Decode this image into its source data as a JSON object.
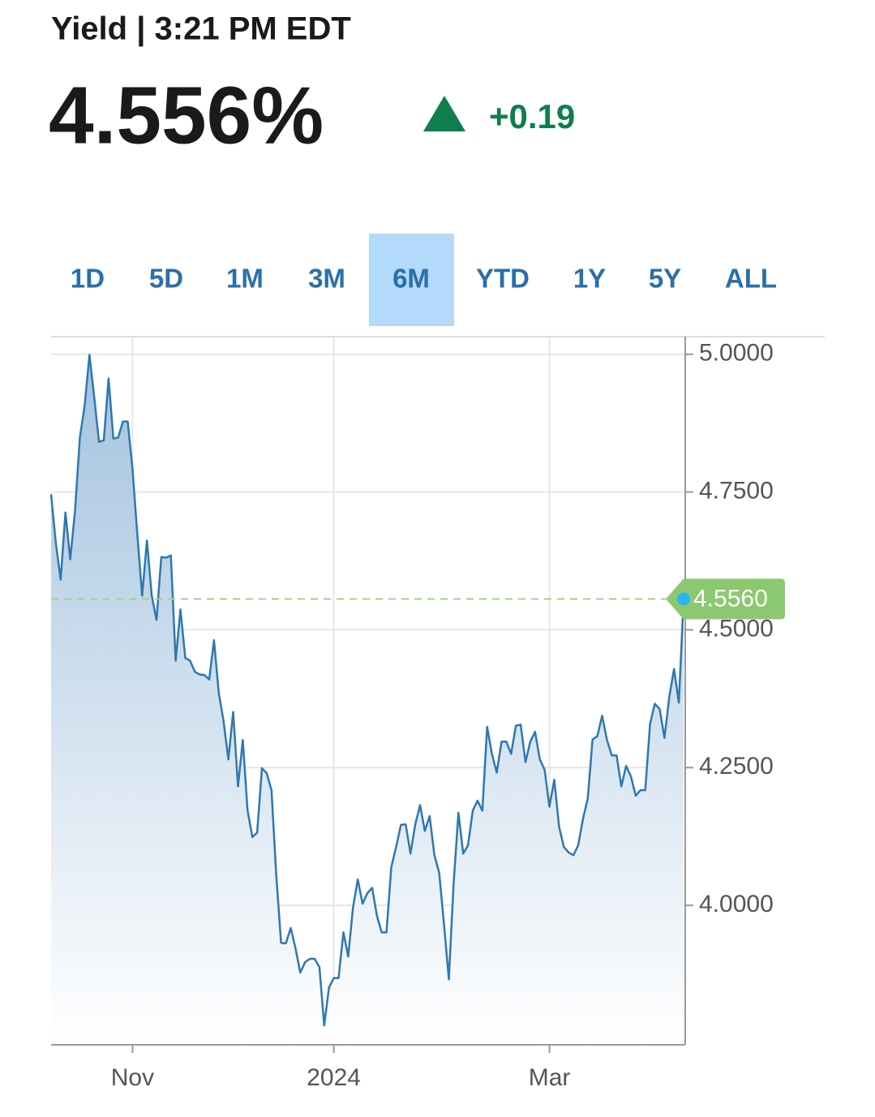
{
  "header": {
    "title": "Yield | 3:21 PM EDT",
    "price": "4.556%",
    "change": "+0.19"
  },
  "tabs": {
    "items": [
      "1D",
      "5D",
      "1M",
      "3M",
      "6M",
      "YTD",
      "1Y",
      "5Y",
      "ALL"
    ],
    "selected": 4
  },
  "chart_data": {
    "type": "area",
    "categories": [
      null,
      null,
      null,
      null,
      null,
      null,
      null,
      null,
      null,
      null,
      null,
      null,
      null,
      null,
      null,
      null,
      null,
      "Nov",
      null,
      null,
      null,
      null,
      null,
      null,
      null,
      null,
      null,
      null,
      null,
      null,
      null,
      null,
      null,
      null,
      null,
      null,
      null,
      null,
      null,
      null,
      null,
      null,
      null,
      null,
      null,
      null,
      null,
      null,
      null,
      null,
      null,
      null,
      null,
      null,
      null,
      null,
      null,
      null,
      null,
      "2024",
      null,
      null,
      null,
      null,
      null,
      null,
      null,
      null,
      null,
      null,
      null,
      null,
      null,
      null,
      null,
      null,
      null,
      null,
      null,
      null,
      null,
      null,
      null,
      null,
      null,
      null,
      null,
      null,
      null,
      null,
      null,
      null,
      null,
      null,
      null,
      null,
      null,
      null,
      null,
      null,
      null,
      null,
      null,
      null,
      "Mar",
      null,
      null,
      null,
      null,
      null,
      null,
      null,
      null,
      null,
      null,
      null,
      null,
      null,
      null,
      null,
      null,
      null,
      null,
      null,
      null,
      null,
      null,
      null,
      null,
      null,
      null,
      null,
      null
    ],
    "values": [
      4.746,
      4.657,
      4.591,
      4.713,
      4.628,
      4.716,
      4.849,
      4.907,
      4.999,
      4.922,
      4.841,
      4.844,
      4.956,
      4.847,
      4.849,
      4.878,
      4.878,
      4.79,
      4.672,
      4.562,
      4.662,
      4.562,
      4.518,
      4.632,
      4.631,
      4.635,
      4.444,
      4.537,
      4.449,
      4.444,
      4.424,
      4.419,
      4.418,
      4.41,
      4.481,
      4.385,
      4.334,
      4.265,
      4.351,
      4.216,
      4.3,
      4.172,
      4.124,
      4.132,
      4.249,
      4.24,
      4.209,
      4.054,
      3.932,
      3.931,
      3.959,
      3.922,
      3.878,
      3.897,
      3.903,
      3.903,
      3.888,
      3.782,
      3.851,
      3.868,
      3.868,
      3.951,
      3.907,
      3.996,
      4.047,
      4.003,
      4.022,
      4.032,
      3.981,
      3.951,
      3.951,
      4.069,
      4.106,
      4.146,
      4.147,
      4.094,
      4.147,
      4.182,
      4.135,
      4.162,
      4.091,
      4.059,
      3.966,
      3.866,
      4.04,
      4.168,
      4.094,
      4.109,
      4.172,
      4.19,
      4.172,
      4.324,
      4.275,
      4.241,
      4.297,
      4.297,
      4.275,
      4.326,
      4.328,
      4.26,
      4.297,
      4.315,
      4.265,
      4.246,
      4.179,
      4.228,
      4.143,
      4.106,
      4.096,
      4.091,
      4.109,
      4.157,
      4.194,
      4.301,
      4.307,
      4.344,
      4.3,
      4.272,
      4.272,
      4.216,
      4.253,
      4.234,
      4.199,
      4.209,
      4.209,
      4.329,
      4.366,
      4.356,
      4.304,
      4.378,
      4.429,
      4.368,
      4.556
    ],
    "color": "#2f78b0",
    "ylim": [
      3.747,
      5.032
    ],
    "yticks": [
      {
        "value": 4,
        "label": "4.0000"
      },
      {
        "value": 4.25,
        "label": "4.2500"
      },
      {
        "value": 4.5,
        "label": "4.5000"
      },
      {
        "value": 4.75,
        "label": "4.7500"
      },
      {
        "value": 5,
        "label": "5.0000"
      }
    ],
    "current": {
      "value": 4.556,
      "label": "4.5560"
    },
    "grid": true
  }
}
